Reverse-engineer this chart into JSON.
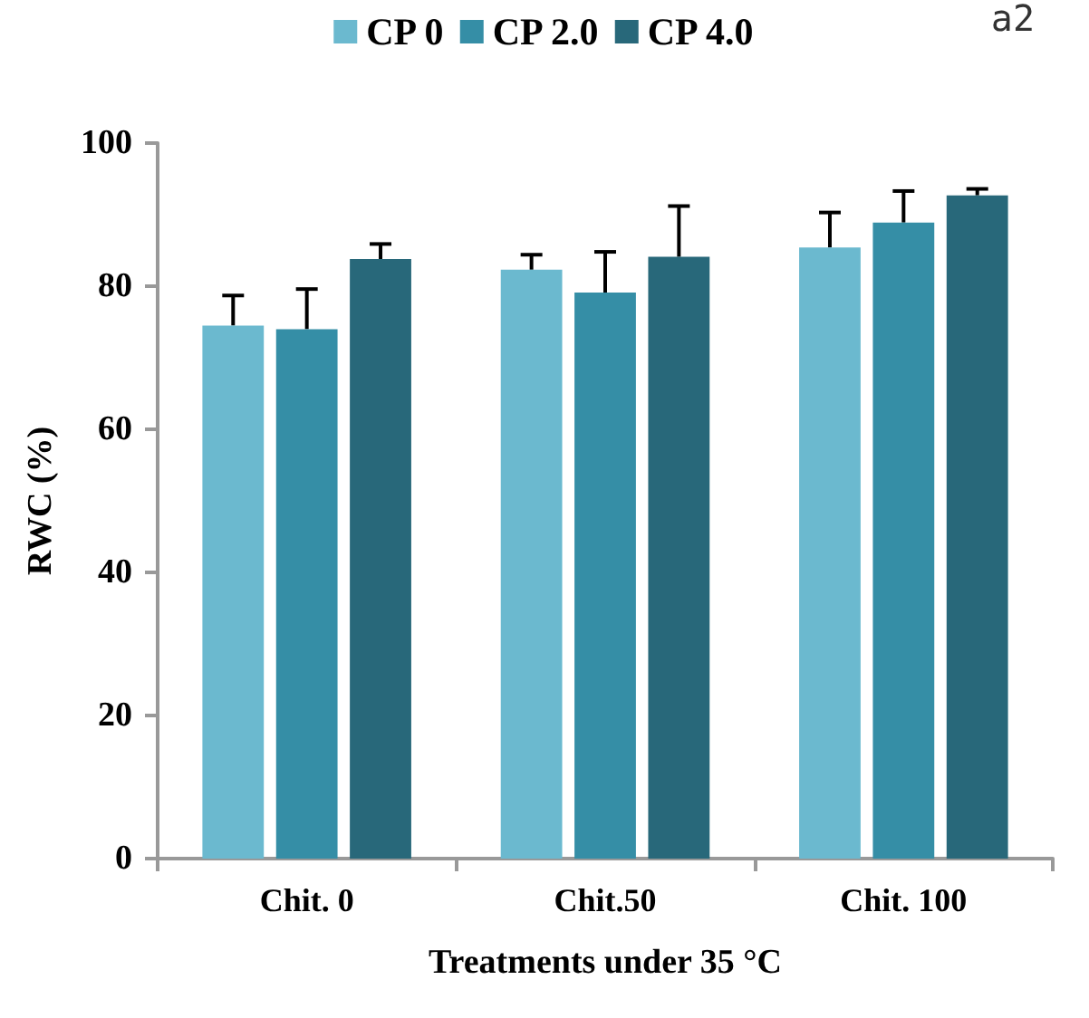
{
  "chart_data": {
    "type": "bar",
    "xlabel": "Treatments under 35 °C",
    "ylabel": "RWC (%)",
    "categories": [
      "Chit. 0",
      "Chit.50",
      "Chit. 100"
    ],
    "series": [
      {
        "name": "CP 0",
        "color": "#6bb9cf",
        "values": [
          74.5,
          82.3,
          85.4
        ],
        "errors": [
          [
            74.5,
            78.7
          ],
          [
            82.3,
            84.4
          ],
          [
            85.4,
            90.3
          ]
        ]
      },
      {
        "name": "CP 2.0",
        "color": "#358ea6",
        "values": [
          74.0,
          79.1,
          88.9
        ],
        "errors": [
          [
            74.0,
            79.6
          ],
          [
            79.1,
            84.8
          ],
          [
            88.9,
            93.3
          ]
        ]
      },
      {
        "name": "CP 4.0",
        "color": "#28687a",
        "values": [
          83.8,
          84.1,
          92.7
        ],
        "errors": [
          [
            83.8,
            85.9
          ],
          [
            84.1,
            91.2
          ],
          [
            92.7,
            93.6
          ]
        ]
      }
    ],
    "annotations": [
      "a2"
    ],
    "ylim": [
      0,
      100
    ],
    "yticks": [
      0,
      20,
      40,
      60,
      80,
      100
    ],
    "grid": false,
    "legend": "top"
  }
}
